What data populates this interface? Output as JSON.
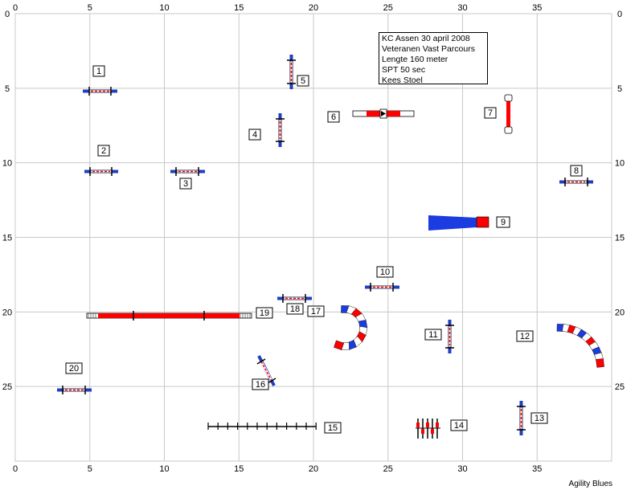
{
  "course": {
    "info_lines": [
      "KC Assen 30 april 2008",
      "Veteranen Vast Parcours",
      "Lengte 160 meter",
      "SPT 50 sec",
      "Kees Stoel"
    ],
    "grid": {
      "x_max": 40,
      "y_max": 30,
      "x_tick_labels": [
        "0",
        "5",
        "10",
        "15",
        "20",
        "25",
        "30",
        "35"
      ],
      "y_tick_labels": [
        "0",
        "5",
        "10",
        "15",
        "20",
        "25"
      ]
    },
    "colors": {
      "grid": "#c8c8c8",
      "bar_red": "#ff0000",
      "wing_blue": "#1f3fbf",
      "tunnel_blue": "#1a3ce0",
      "tunnel_red": "#ff0000",
      "label_box": "#000000"
    },
    "obstacles": [
      {
        "number": "1",
        "type": "jump"
      },
      {
        "number": "2",
        "type": "jump"
      },
      {
        "number": "3",
        "type": "jump"
      },
      {
        "number": "4",
        "type": "jump"
      },
      {
        "number": "5",
        "type": "jump"
      },
      {
        "number": "6",
        "type": "seesaw"
      },
      {
        "number": "7",
        "type": "jump"
      },
      {
        "number": "8",
        "type": "jump"
      },
      {
        "number": "9",
        "type": "chute-tunnel"
      },
      {
        "number": "10",
        "type": "jump"
      },
      {
        "number": "11",
        "type": "jump"
      },
      {
        "number": "12",
        "type": "tunnel"
      },
      {
        "number": "13",
        "type": "jump"
      },
      {
        "number": "14",
        "type": "weave-poles"
      },
      {
        "number": "15",
        "type": "weave-poles"
      },
      {
        "number": "16",
        "type": "jump"
      },
      {
        "number": "17",
        "type": "tunnel"
      },
      {
        "number": "18",
        "type": "jump"
      },
      {
        "number": "19",
        "type": "dog-walk"
      },
      {
        "number": "20",
        "type": "jump"
      }
    ]
  },
  "footer": {
    "credit": "Agility Blues"
  }
}
